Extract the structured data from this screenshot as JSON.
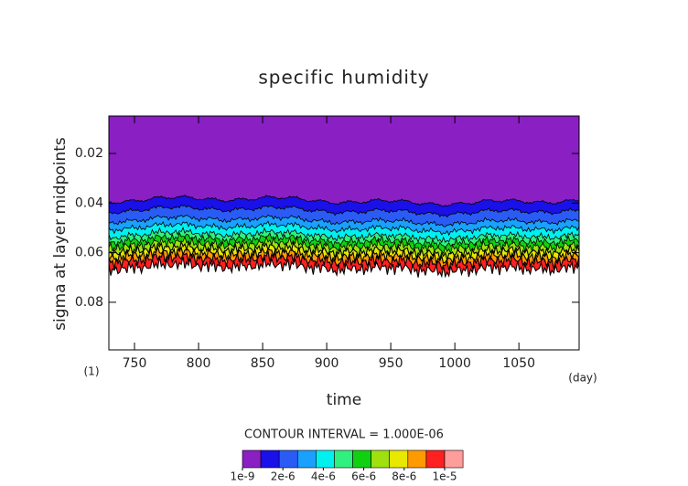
{
  "chart_data": {
    "type": "contour",
    "title": "specific humidity",
    "x_label": "time",
    "y_label": "sigma at layer midpoints",
    "x_unit": "(day)",
    "y_unit": "(1)",
    "xlim": [
      730,
      1097
    ],
    "xticks": [
      750,
      800,
      850,
      900,
      950,
      1000,
      1050
    ],
    "ylim": [
      0.0049,
      0.0992
    ],
    "yticks": [
      0.02,
      0.04,
      0.06,
      0.08
    ],
    "contour_depths": [
      0.039,
      0.043,
      0.047,
      0.05,
      0.053,
      0.055,
      0.057,
      0.059,
      0.061,
      0.063,
      0.066
    ],
    "colors": [
      "#8a1fc4",
      "#1a10e8",
      "#2a5cf5",
      "#1aa0ff",
      "#00f0f0",
      "#30f080",
      "#10d010",
      "#a0e010",
      "#e8e800",
      "#ff9a00",
      "#ff2020"
    ],
    "colorbar_extra_color": "#ff9c9c",
    "colorbar_title": "CONTOUR INTERVAL = 1.000E-06",
    "clim": [
      1e-09,
      1e-05
    ],
    "colorbar_ticks": [
      {
        "value": 1e-09,
        "label": "1e-9"
      },
      {
        "value": 2e-06,
        "label": "2e-6"
      },
      {
        "value": 4e-06,
        "label": "4e-6"
      },
      {
        "value": 6e-06,
        "label": "6e-6"
      },
      {
        "value": 8e-06,
        "label": "8e-6"
      },
      {
        "value": 1e-05,
        "label": "1e-5"
      }
    ]
  }
}
